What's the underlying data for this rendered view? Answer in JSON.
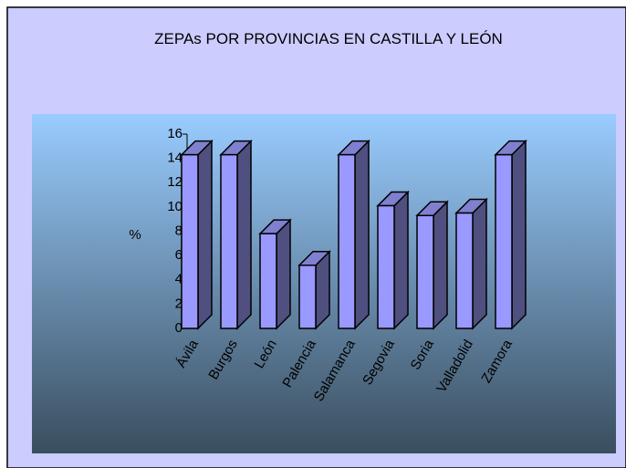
{
  "chart_data": {
    "type": "bar",
    "title": "ZEPAs POR PROVINCIAS EN CASTILLA Y LEÓN",
    "y_label": "%",
    "categories": [
      "Ávila",
      "Burgos",
      "León",
      "Palencia",
      "Salamanca",
      "Segovia",
      "Soria",
      "Valladolid",
      "Zamora"
    ],
    "values": [
      14.3,
      14.3,
      7.8,
      5.2,
      14.3,
      10.1,
      9.3,
      9.5,
      14.3
    ],
    "color": "#9999ff",
    "ylim": [
      0,
      16
    ],
    "yticks": [
      0,
      2,
      4,
      6,
      8,
      10,
      12,
      14,
      16
    ]
  }
}
